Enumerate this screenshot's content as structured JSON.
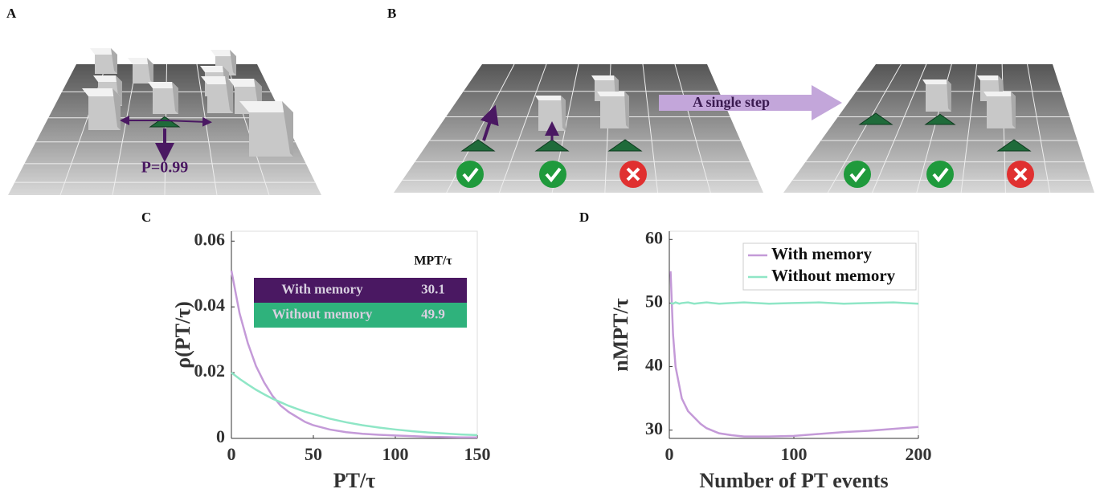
{
  "panel_a": {
    "label": "A",
    "annotation": "P=0.99"
  },
  "panel_b": {
    "label": "B",
    "annotation": "A single step"
  },
  "chart_data": [
    {
      "type": "line",
      "panel_label": "C",
      "xlabel": "PT/τ",
      "ylabel": "ρ(PT/τ)",
      "x": [
        0,
        5,
        10,
        15,
        20,
        25,
        30,
        35,
        40,
        45,
        50,
        60,
        70,
        80,
        90,
        100,
        110,
        120,
        130,
        140,
        150
      ],
      "series": [
        {
          "name": "With memory",
          "color": "#c49ad8",
          "values": [
            0.051,
            0.038,
            0.029,
            0.022,
            0.017,
            0.013,
            0.01,
            0.008,
            0.0065,
            0.005,
            0.004,
            0.0027,
            0.0019,
            0.0014,
            0.0011,
            0.0009,
            0.0007,
            0.0005,
            0.0004,
            0.0003,
            0.0003
          ]
        },
        {
          "name": "Without memory",
          "color": "#8fe6c6",
          "values": [
            0.02,
            0.0181,
            0.0164,
            0.0148,
            0.0134,
            0.0121,
            0.011,
            0.0099,
            0.009,
            0.0081,
            0.0074,
            0.006,
            0.0049,
            0.004,
            0.0033,
            0.0027,
            0.0022,
            0.0018,
            0.0015,
            0.0012,
            0.001
          ]
        }
      ],
      "xlim": [
        0,
        150
      ],
      "xticks": [
        0,
        50,
        100,
        150
      ],
      "ylim": [
        0,
        0.063
      ],
      "yticks": [
        0,
        0.02,
        0.04,
        0.06
      ],
      "table": {
        "header": "MPT/τ",
        "rows": [
          [
            "With memory",
            30.1
          ],
          [
            "Without memory",
            49.9
          ]
        ],
        "row_colors": [
          "#4a1862",
          "#2fb27c"
        ]
      }
    },
    {
      "type": "line",
      "panel_label": "D",
      "xlabel": "Number of PT events",
      "ylabel": "nMPT/τ",
      "x": [
        1,
        3,
        5,
        8,
        10,
        15,
        20,
        25,
        30,
        40,
        50,
        60,
        80,
        100,
        120,
        140,
        160,
        180,
        200
      ],
      "series": [
        {
          "name": "With memory",
          "color": "#c49ad8",
          "values": [
            55,
            45,
            40,
            37,
            35,
            33,
            32,
            31,
            30.3,
            29.5,
            29.2,
            29,
            29,
            29.1,
            29.4,
            29.7,
            29.9,
            30.2,
            30.5
          ]
        },
        {
          "name": "Without memory",
          "color": "#8fe6c6",
          "values": [
            50,
            49.9,
            50.1,
            49.9,
            50,
            50.1,
            49.9,
            50,
            50.1,
            49.9,
            50,
            50.1,
            49.9,
            50,
            50.1,
            49.9,
            50,
            50.1,
            49.9
          ]
        }
      ],
      "xlim": [
        0,
        200
      ],
      "xticks": [
        0,
        100,
        200
      ],
      "ylim": [
        28.7,
        61.3
      ],
      "yticks": [
        30,
        40,
        50,
        60
      ],
      "legend": "upper-right"
    }
  ]
}
